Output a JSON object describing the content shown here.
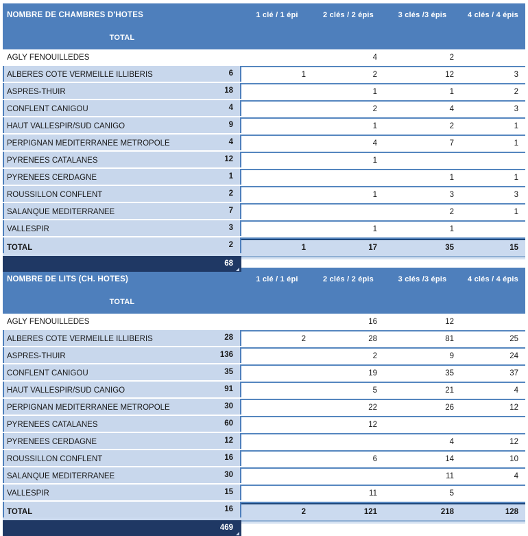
{
  "colors": {
    "header_bg": "#4E7FBC",
    "header_text": "#FFFFFF",
    "row_separator": "#5586BF",
    "total_column_bg": "#C8D7EC",
    "total_row_bg": "#CBDAEF",
    "total_row_top_border": "#1F497D",
    "grand_total_bg": "#1F3864",
    "grand_total_text": "#FFFFFF",
    "cell_text": "#1A1A1A"
  },
  "chart_data": [
    {
      "type": "table",
      "title": "NOMBRE DE CHAMBRES D'HOTES",
      "columns": [
        "1 clé / 1 épi",
        "2 clés / 2 épis",
        "3 clés /3 épis",
        "4 clés / 4 épis",
        "TOTAL"
      ],
      "rows": [
        {
          "label": "AGLY FENOUILLEDES",
          "values": [
            "",
            "4",
            "2",
            "",
            "6"
          ]
        },
        {
          "label": "ALBERES COTE VERMEILLE ILLIBERIS",
          "values": [
            "1",
            "2",
            "12",
            "3",
            "18"
          ]
        },
        {
          "label": "ASPRES-THUIR",
          "values": [
            "",
            "1",
            "1",
            "2",
            "4"
          ]
        },
        {
          "label": "CONFLENT CANIGOU",
          "values": [
            "",
            "2",
            "4",
            "3",
            "9"
          ]
        },
        {
          "label": "HAUT VALLESPIR/SUD CANIGO",
          "values": [
            "",
            "1",
            "2",
            "1",
            "4"
          ]
        },
        {
          "label": "PERPIGNAN MEDITERRANEE METROPOLE",
          "values": [
            "",
            "4",
            "7",
            "1",
            "12"
          ]
        },
        {
          "label": "PYRENEES CATALANES",
          "values": [
            "",
            "1",
            "",
            "",
            "1"
          ]
        },
        {
          "label": "PYRENEES CERDAGNE",
          "values": [
            "",
            "",
            "1",
            "1",
            "2"
          ]
        },
        {
          "label": "ROUSSILLON CONFLENT",
          "values": [
            "",
            "1",
            "3",
            "3",
            "7"
          ]
        },
        {
          "label": "SALANQUE MEDITERRANEE",
          "values": [
            "",
            "",
            "2",
            "1",
            "3"
          ]
        },
        {
          "label": "VALLESPIR",
          "values": [
            "",
            "1",
            "1",
            "",
            "2"
          ]
        }
      ],
      "total_row": {
        "label": "TOTAL",
        "values": [
          "1",
          "17",
          "35",
          "15",
          "68"
        ]
      }
    },
    {
      "type": "table",
      "title": "NOMBRE DE LITS (CH. HOTES)",
      "columns": [
        "1 clé / 1 épi",
        "2 clés / 2 épis",
        "3 clés /3 épis",
        "4 clés / 4 épis",
        "TOTAL"
      ],
      "rows": [
        {
          "label": "AGLY FENOUILLEDES",
          "values": [
            "",
            "16",
            "12",
            "",
            "28"
          ]
        },
        {
          "label": "ALBERES COTE VERMEILLE ILLIBERIS",
          "values": [
            "2",
            "28",
            "81",
            "25",
            "136"
          ]
        },
        {
          "label": "ASPRES-THUIR",
          "values": [
            "",
            "2",
            "9",
            "24",
            "35"
          ]
        },
        {
          "label": "CONFLENT CANIGOU",
          "values": [
            "",
            "19",
            "35",
            "37",
            "91"
          ]
        },
        {
          "label": "HAUT VALLESPIR/SUD CANIGO",
          "values": [
            "",
            "5",
            "21",
            "4",
            "30"
          ]
        },
        {
          "label": "PERPIGNAN MEDITERRANEE METROPOLE",
          "values": [
            "",
            "22",
            "26",
            "12",
            "60"
          ]
        },
        {
          "label": "PYRENEES CATALANES",
          "values": [
            "",
            "12",
            "",
            "",
            "12"
          ]
        },
        {
          "label": "PYRENEES CERDAGNE",
          "values": [
            "",
            "",
            "4",
            "12",
            "16"
          ]
        },
        {
          "label": "ROUSSILLON CONFLENT",
          "values": [
            "",
            "6",
            "14",
            "10",
            "30"
          ]
        },
        {
          "label": "SALANQUE MEDITERRANEE",
          "values": [
            "",
            "",
            "11",
            "4",
            "15"
          ]
        },
        {
          "label": "VALLESPIR",
          "values": [
            "",
            "11",
            "5",
            "",
            "16"
          ]
        }
      ],
      "total_row": {
        "label": "TOTAL",
        "values": [
          "2",
          "121",
          "218",
          "128",
          "469"
        ]
      }
    }
  ]
}
